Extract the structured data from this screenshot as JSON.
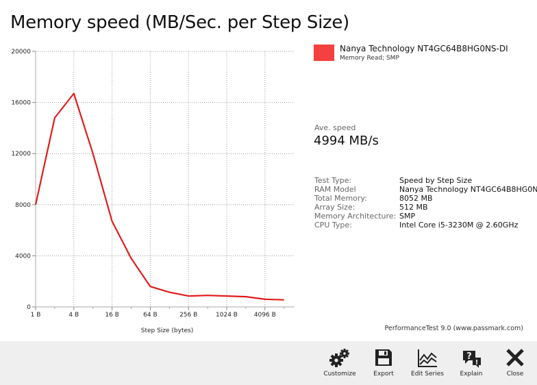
{
  "title": "Memory speed (MB/Sec. per Step Size)",
  "chart_data": {
    "type": "line",
    "x": [
      "1 B",
      "2 B",
      "4 B",
      "8 B",
      "16 B",
      "32 B",
      "64 B",
      "128 B",
      "256 B",
      "512 B",
      "1024 B",
      "2048 B",
      "4096 B",
      "8192 B"
    ],
    "xticks": [
      "1 B",
      "4 B",
      "16 B",
      "64 B",
      "256 B",
      "1024 B",
      "4096 B"
    ],
    "xlabel": "Step Size (bytes)",
    "ylabel": "",
    "ylim": [
      0,
      20000
    ],
    "yticks": [
      "0",
      "4000",
      "8000",
      "12000",
      "16000",
      "20000"
    ],
    "series": [
      {
        "name": "Nanya Technology NT4GC64B8HG0NS-DI",
        "color": "#e01b1b",
        "values": [
          8000,
          14800,
          16700,
          12000,
          6700,
          3800,
          1600,
          1150,
          850,
          900,
          850,
          800,
          600,
          550
        ]
      }
    ],
    "grid": true,
    "legend_position": "right"
  },
  "legend": {
    "name": "Nanya Technology NT4GC64B8HG0NS-DI",
    "subtitle": "Memory Read; SMP",
    "swatch_color": "#f44040"
  },
  "average": {
    "label": "Ave. speed",
    "value": "4994 MB/s"
  },
  "info": [
    {
      "label": "Test Type:",
      "value": "Speed by Step Size"
    },
    {
      "label": "RAM Model",
      "value": "Nanya Technology NT4GC64B8HG0N"
    },
    {
      "label": "Total Memory:",
      "value": "8052 MB"
    },
    {
      "label": "Array Size:",
      "value": "512 MB"
    },
    {
      "label": "Memory Architecture:",
      "value": "SMP"
    },
    {
      "label": "CPU Type:",
      "value": "Intel Core i5-3230M @ 2.60GHz"
    }
  ],
  "credit": "PerformanceTest 9.0 (www.passmark.com)",
  "toolbar": {
    "customize": "Customize",
    "export": "Export",
    "edit_series": "Edit Series",
    "explain": "Explain",
    "close": "Close"
  }
}
